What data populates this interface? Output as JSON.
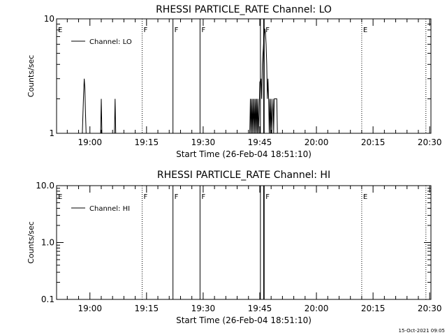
{
  "footer": {
    "timestamp": "15-Oct-2021 09:05"
  },
  "chart_data": [
    {
      "type": "line",
      "title": "RHESSI PARTICLE_RATE Channel: LO",
      "xlabel": "Start Time (26-Feb-04 18:51:10)",
      "ylabel": "Counts/sec",
      "yscale": "log",
      "ylim": [
        1,
        10
      ],
      "yticks": [
        {
          "v": 1,
          "label": "1"
        },
        {
          "v": 10,
          "label": "10"
        }
      ],
      "xlim_seconds": [
        0,
        5950
      ],
      "xticks": [
        {
          "t": 530,
          "label": "19:00"
        },
        {
          "t": 1430,
          "label": "19:15"
        },
        {
          "t": 2330,
          "label": "19:30"
        },
        {
          "t": 3230,
          "label": "19:45"
        },
        {
          "t": 4130,
          "label": "20:00"
        },
        {
          "t": 5030,
          "label": "20:15"
        },
        {
          "t": 5930,
          "label": "20:30"
        }
      ],
      "legend": {
        "position": "top-left",
        "entries": [
          "Channel: LO"
        ]
      },
      "event_markers": [
        {
          "t": 0,
          "label": "E",
          "style": "none"
        },
        {
          "t": 1360,
          "label": "F",
          "style": "dotted"
        },
        {
          "t": 1850,
          "label": "F",
          "style": "solid"
        },
        {
          "t": 2280,
          "label": "F",
          "style": "solid"
        },
        {
          "t": 3300,
          "label": "F",
          "style": "solid"
        },
        {
          "t": 4850,
          "label": "E",
          "style": "dotted"
        },
        {
          "t": 5870,
          "label": "",
          "style": "dotted"
        }
      ],
      "solid_lines": [
        3240,
        3290
      ],
      "series": [
        {
          "values": [
            [
              400,
              1
            ],
            [
              410,
              1
            ],
            [
              420,
              1.5
            ],
            [
              430,
              2.2
            ],
            [
              440,
              3
            ],
            [
              450,
              2.5
            ],
            [
              460,
              1.5
            ],
            [
              470,
              1
            ],
            [
              700,
              1
            ],
            [
              710,
              2
            ],
            [
              720,
              1
            ],
            [
              920,
              1
            ],
            [
              930,
              2
            ],
            [
              940,
              1
            ],
            [
              3070,
              1
            ],
            [
              3080,
              2
            ],
            [
              3090,
              1
            ],
            [
              3100,
              2
            ],
            [
              3110,
              1
            ],
            [
              3120,
              2
            ],
            [
              3130,
              1
            ],
            [
              3140,
              2
            ],
            [
              3150,
              1
            ],
            [
              3160,
              2
            ],
            [
              3170,
              1
            ],
            [
              3180,
              2
            ],
            [
              3190,
              1
            ],
            [
              3200,
              2
            ],
            [
              3210,
              1
            ],
            [
              3220,
              1.5
            ],
            [
              3230,
              2.8
            ],
            [
              3250,
              3
            ],
            [
              3260,
              2
            ],
            [
              3270,
              4
            ],
            [
              3280,
              5
            ],
            [
              3290,
              6
            ],
            [
              3300,
              7
            ],
            [
              3310,
              8.2
            ],
            [
              3320,
              7.5
            ],
            [
              3330,
              6
            ],
            [
              3340,
              4
            ],
            [
              3350,
              2
            ],
            [
              3360,
              3
            ],
            [
              3370,
              2
            ],
            [
              3380,
              1
            ],
            [
              3390,
              2
            ],
            [
              3400,
              1
            ],
            [
              3410,
              2
            ],
            [
              3420,
              1
            ],
            [
              3430,
              1.5
            ],
            [
              3440,
              2
            ],
            [
              3450,
              1
            ],
            [
              3460,
              2
            ],
            [
              3500,
              2
            ],
            [
              3510,
              1
            ]
          ]
        }
      ]
    },
    {
      "type": "line",
      "title": "RHESSI PARTICLE_RATE Channel: HI",
      "xlabel": "Start Time (26-Feb-04 18:51:10)",
      "ylabel": "Counts/sec",
      "yscale": "log",
      "ylim": [
        0.1,
        10
      ],
      "yticks": [
        {
          "v": 0.1,
          "label": "0.1"
        },
        {
          "v": 1,
          "label": "1.0"
        },
        {
          "v": 10,
          "label": "10.0"
        }
      ],
      "xlim_seconds": [
        0,
        5950
      ],
      "xticks": [
        {
          "t": 530,
          "label": "19:00"
        },
        {
          "t": 1430,
          "label": "19:15"
        },
        {
          "t": 2330,
          "label": "19:30"
        },
        {
          "t": 3230,
          "label": "19:45"
        },
        {
          "t": 4130,
          "label": "20:00"
        },
        {
          "t": 5030,
          "label": "20:15"
        },
        {
          "t": 5930,
          "label": "20:30"
        }
      ],
      "legend": {
        "position": "top-left",
        "entries": [
          "Channel: HI"
        ]
      },
      "event_markers": [
        {
          "t": 0,
          "label": "E",
          "style": "none"
        },
        {
          "t": 1360,
          "label": "F",
          "style": "dotted"
        },
        {
          "t": 1850,
          "label": "F",
          "style": "solid"
        },
        {
          "t": 2280,
          "label": "F",
          "style": "solid"
        },
        {
          "t": 3300,
          "label": "F",
          "style": "solid"
        },
        {
          "t": 4850,
          "label": "E",
          "style": "dotted"
        },
        {
          "t": 5870,
          "label": "",
          "style": "dotted"
        }
      ],
      "solid_lines": [
        3240,
        3290
      ],
      "series": [
        {
          "values": []
        }
      ]
    }
  ]
}
